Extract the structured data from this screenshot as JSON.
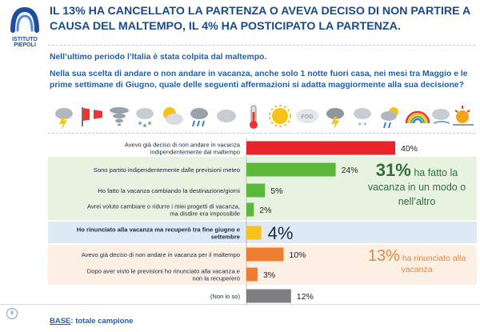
{
  "brand": {
    "name_line1": "ISTITUTO",
    "name_line2": "PIEPOLI",
    "color": "#1d4f9c"
  },
  "header": {
    "title": "IL 13% HA CANCELLATO LA PARTENZA O AVEVA DECISO DI NON PARTIRE A CAUSA DEL MALTEMPO, IL 4% HA POSTICIPATO LA PARTENZA."
  },
  "intro": "Nell’ultimo periodo l’Italia è stata colpita dal maltempo.",
  "question": "Nella sua scelta di andare o non andare in vacanza, anche solo 1 notte fuori casa, nei mesi tra Maggio e le prime settimane di Giugno, quale delle seguenti affermazioni si adatta maggiormente alla sua decisione?",
  "weather_icons": [
    "cloud-lightning-icon",
    "wind-sock-icon",
    "tornado-icon",
    "cloud-hail-icon",
    "sun-cloud-icon",
    "rain-cloud-icon",
    "cloud-icon",
    "thermometer-icon",
    "sun-icon",
    "fog-icon",
    "cloud-lightning-icon",
    "snow-cloud-icon",
    "rain-sun-icon",
    "rainbow-icon",
    "wind-cloud-icon",
    "sunset-icon",
    "cloud-icon"
  ],
  "fog_text": "FOG",
  "chart_data": {
    "type": "bar",
    "orientation": "horizontal",
    "xlim": [
      0,
      40
    ],
    "categories": [
      "Avevo già deciso di non andare in vacanza indipendentemente dal maltempo",
      "Sono partito indipendentemente dalle previsioni meteo",
      "Ho fatto la vacanza cambiando la destinazione/giorni",
      "Avrei voluto cambiare o ridurre i miei progetti di vacanza, ma disdire era impossibile",
      "Ho rinunciato alla vacanza ma recuperò tra fine giugno e settembre",
      "Avevo già deciso di non andare in vacanza per il maltempo",
      "Dopo aver visto le previsioni ho rinunciato alla vacanza e non la recupererò",
      "(Non lo so)"
    ],
    "label_lines": [
      [
        "Avevo già deciso di non andare in vacanza",
        "indipendentemente dal maltempo"
      ],
      [
        "Sono partito indipendentemente dalle previsioni meteo"
      ],
      [
        "Ho fatto la vacanza cambiando la destinazione/giorni"
      ],
      [
        "Avrei voluto cambiare o ridurre i miei progetti di vacanza,",
        "ma disdire era impossibile"
      ],
      [
        "Ho rinunciato alla vacanza ma recuperò tra fine giugno e",
        "settembre"
      ],
      [
        "Avevo già deciso di non andare in vacanza per il maltempo"
      ],
      [
        "Dopo aver visto le previsioni ho rinunciato alla vacanza e",
        "non la recupererò"
      ],
      [
        "(Non lo so)"
      ]
    ],
    "values": [
      40,
      24,
      5,
      2,
      4,
      10,
      3,
      12
    ],
    "value_labels": [
      "40%",
      "24%",
      "5%",
      "2%",
      "4%",
      "10%",
      "3%",
      "12%"
    ],
    "bold_index": 4,
    "big_label_index": 4,
    "colors": [
      "#e8232a",
      "#5cb83a",
      "#5cb83a",
      "#5cb83a",
      "#f7c21a",
      "#ee7d31",
      "#ee7d31",
      "#7f7f7f"
    ]
  },
  "callouts": {
    "green": {
      "value": "31%",
      "text": "ha fatto la vacanza in un modo o nell’altro",
      "color": "#2e6f3a"
    },
    "orange": {
      "value": "13%",
      "text": "ha rinunciato alla vacanza",
      "color": "#e8843c"
    }
  },
  "footer": {
    "page_number": "8",
    "base_label": "BASE",
    "base_text": ": totale campione"
  }
}
